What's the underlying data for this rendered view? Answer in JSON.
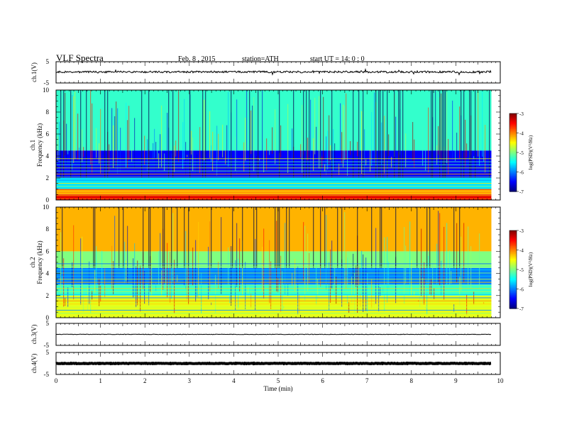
{
  "header": {
    "title": "VLF  Spectra",
    "date": "Feb. 8  , 2015",
    "station": "station=ATH",
    "start": "start  UT  =    14: 0  : 0"
  },
  "chart_data": [
    {
      "type": "line",
      "panel": "ch1-waveform",
      "ylabel": "ch.1(V)",
      "ylim": [
        -5,
        5
      ],
      "yticks": [
        "5",
        "-5"
      ],
      "x_range_min": [
        0,
        9.8
      ],
      "mean_level": 0.2,
      "line_color": "#000000"
    },
    {
      "type": "heatmap",
      "panel": "ch1-spectrogram",
      "ylabel": "ch.1\nFrequency  (kHz)",
      "ylim": [
        0,
        10
      ],
      "yticks": [
        "0",
        "2",
        "4",
        "6",
        "8",
        "10"
      ],
      "x_range_min": [
        0,
        9.8
      ],
      "colorbar": {
        "label": "log(PSD)(V²/Hz)",
        "range": [
          -7,
          -3
        ],
        "ticks": [
          "-3",
          "-4",
          "-5",
          "-6",
          "-7"
        ]
      },
      "bands_khz": [
        {
          "from": 0.0,
          "to": 0.5,
          "logpsd": -3.4
        },
        {
          "from": 0.5,
          "to": 1.0,
          "logpsd": -4.2
        },
        {
          "from": 1.0,
          "to": 2.0,
          "logpsd": -5.6
        },
        {
          "from": 2.0,
          "to": 4.5,
          "logpsd": -6.5
        },
        {
          "from": 4.5,
          "to": 10.0,
          "logpsd": -5.3
        }
      ]
    },
    {
      "type": "heatmap",
      "panel": "ch2-spectrogram",
      "ylabel": "ch.2\nFrequency  (kHz)",
      "ylim": [
        0,
        10
      ],
      "yticks": [
        "0",
        "2",
        "4",
        "6",
        "8",
        "10"
      ],
      "x_range_min": [
        0,
        9.8
      ],
      "colorbar": {
        "label": "log(PSD)(V²/Hz)",
        "range": [
          -7,
          -3
        ],
        "ticks": [
          "-3",
          "-4",
          "-5",
          "-6",
          "-7"
        ]
      },
      "bands_khz": [
        {
          "from": 0.0,
          "to": 2.0,
          "logpsd": -4.6
        },
        {
          "from": 2.0,
          "to": 3.0,
          "logpsd": -5.3
        },
        {
          "from": 3.0,
          "to": 4.5,
          "logpsd": -6.0
        },
        {
          "from": 4.5,
          "to": 6.0,
          "logpsd": -5.0
        },
        {
          "from": 6.0,
          "to": 10.0,
          "logpsd": -4.2
        }
      ]
    },
    {
      "type": "line",
      "panel": "ch3-waveform",
      "ylabel": "ch.3(V)",
      "ylim": [
        -5,
        5
      ],
      "yticks": [
        "5",
        "-5"
      ],
      "x_range_min": [
        0,
        9.8
      ],
      "mean_level": 0.0,
      "line_color": "#000000"
    },
    {
      "type": "line",
      "panel": "ch4-waveform",
      "ylabel": "ch.4(V)",
      "ylim": [
        -5,
        5
      ],
      "yticks": [
        "5",
        "-5"
      ],
      "x_range_min": [
        0,
        9.8
      ],
      "mean_level": 0.0,
      "line_color": "#000000"
    }
  ],
  "x_axis": {
    "label": "Time  (min)",
    "range": [
      0,
      10
    ],
    "ticks": [
      "0",
      "1",
      "2",
      "3",
      "4",
      "5",
      "6",
      "7",
      "8",
      "9",
      "10"
    ]
  }
}
